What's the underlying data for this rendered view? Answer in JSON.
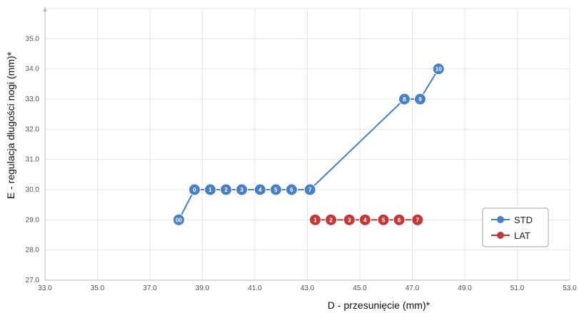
{
  "chart_data": {
    "type": "line",
    "title": "",
    "xlabel": "D - przesunięcie (mm)*",
    "ylabel": "E - regulacja długości nogi (mm)*",
    "xlim": [
      33.0,
      53.0
    ],
    "ylim": [
      27.0,
      36.0
    ],
    "xticks": [
      "33.0",
      "35.0",
      "37.0",
      "39.0",
      "41.0",
      "43.0",
      "45.0",
      "47.0",
      "49.0",
      "51.0",
      "53.0"
    ],
    "yticks": [
      "27.0",
      "28.0",
      "29.0",
      "30.0",
      "31.0",
      "32.0",
      "33.0",
      "34.0",
      "35.0"
    ],
    "grid": true,
    "legend_position": "bottom-right",
    "series": [
      {
        "name": "STD",
        "color": "#4a7fc1",
        "points": [
          {
            "label": "00",
            "x": 38.1,
            "y": 29.0
          },
          {
            "label": "0",
            "x": 38.7,
            "y": 30.0
          },
          {
            "label": "1",
            "x": 39.3,
            "y": 30.0
          },
          {
            "label": "2",
            "x": 39.9,
            "y": 30.0
          },
          {
            "label": "3",
            "x": 40.5,
            "y": 30.0
          },
          {
            "label": "4",
            "x": 41.2,
            "y": 30.0
          },
          {
            "label": "5",
            "x": 41.8,
            "y": 30.0
          },
          {
            "label": "6",
            "x": 42.4,
            "y": 30.0
          },
          {
            "label": "7",
            "x": 43.1,
            "y": 30.0
          },
          {
            "label": "8",
            "x": 46.7,
            "y": 33.0
          },
          {
            "label": "9",
            "x": 47.3,
            "y": 33.0
          },
          {
            "label": "10",
            "x": 48.0,
            "y": 34.0
          }
        ]
      },
      {
        "name": "LAT",
        "color": "#c0393b",
        "points": [
          {
            "label": "1",
            "x": 43.3,
            "y": 29.0
          },
          {
            "label": "2",
            "x": 43.9,
            "y": 29.0
          },
          {
            "label": "3",
            "x": 44.6,
            "y": 29.0
          },
          {
            "label": "4",
            "x": 45.2,
            "y": 29.0
          },
          {
            "label": "5",
            "x": 45.9,
            "y": 29.0
          },
          {
            "label": "6",
            "x": 46.5,
            "y": 29.0
          },
          {
            "label": "7",
            "x": 47.2,
            "y": 29.0
          }
        ]
      }
    ]
  }
}
